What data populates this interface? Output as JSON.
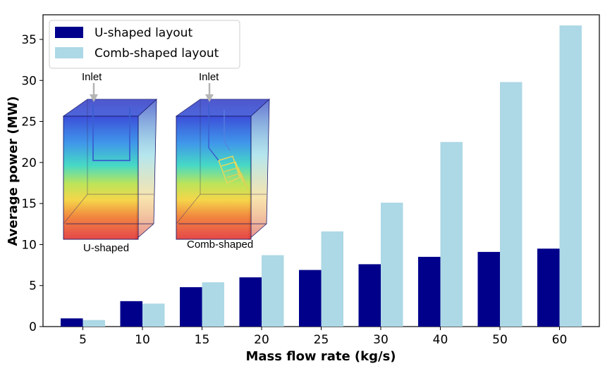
{
  "chart_data": {
    "type": "bar",
    "title": "",
    "xlabel": "Mass flow rate (kg/s)",
    "ylabel": "Average power (MW)",
    "categories": [
      "5",
      "10",
      "15",
      "20",
      "25",
      "30",
      "40",
      "50",
      "60"
    ],
    "series": [
      {
        "name": "U-shaped layout",
        "color": "#00008b",
        "values": [
          1.0,
          3.1,
          4.8,
          6.0,
          6.9,
          7.6,
          8.5,
          9.1,
          9.5
        ]
      },
      {
        "name": "Comb-shaped layout",
        "color": "#add8e6",
        "values": [
          0.8,
          2.8,
          5.4,
          8.7,
          11.6,
          15.1,
          22.5,
          29.8,
          36.7
        ]
      }
    ],
    "ylim": [
      0,
      38
    ],
    "yticks": [
      0,
      5,
      10,
      15,
      20,
      25,
      30,
      35
    ],
    "grid": false,
    "legend_position": "top-left"
  },
  "inset": {
    "u_shaped": {
      "inlet_label": "Inlet",
      "caption": "U-shaped"
    },
    "comb_shaped": {
      "inlet_label": "Inlet",
      "caption": "Comb-shaped"
    }
  }
}
